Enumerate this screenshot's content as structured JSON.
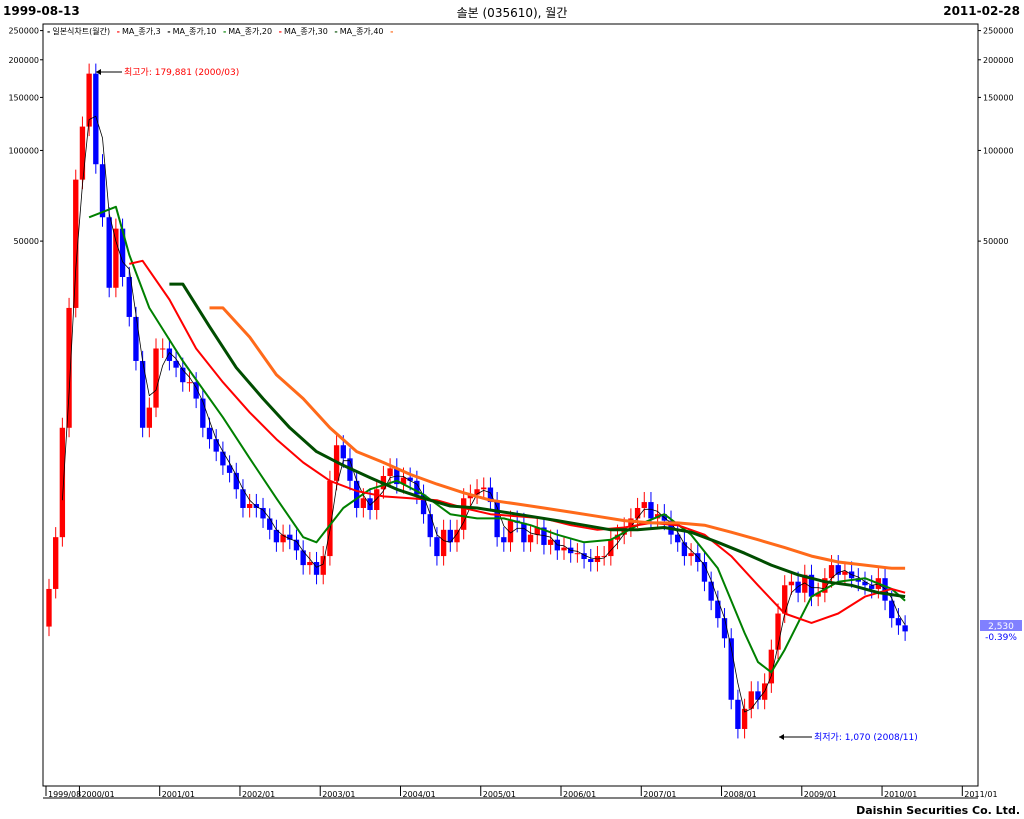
{
  "header": {
    "start_date": "1999-08-13",
    "end_date": "2011-02-28",
    "title": "솔본 (035610), 월간"
  },
  "footer": {
    "company": "Daishin Securities Co. Ltd."
  },
  "legend": [
    {
      "label": "일본식차트(월간)",
      "color": "#000000"
    },
    {
      "label": "MA_종가,3",
      "color": "#ff0000"
    },
    {
      "label": "MA_종가,10",
      "color": "#000000"
    },
    {
      "label": "MA_종가,20",
      "color": "#008000"
    },
    {
      "label": "MA_종가,30",
      "color": "#ff0000"
    },
    {
      "label": "MA_종가,40",
      "color": "#004d00"
    },
    {
      "label": "",
      "color": "#ff6a1a"
    }
  ],
  "annotations": {
    "high": "최고가: 179,881 (2000/03)",
    "low": "최저가: 1,070 (2008/11)"
  },
  "price_tag": {
    "price": "2,530",
    "change": "-0.39%"
  },
  "colors": {
    "up": "#ff0000",
    "down": "#0000ff",
    "ma3": "#000000",
    "ma10": "#008000",
    "ma20": "#ff0000",
    "ma30": "#004d00",
    "ma40": "#ff6a1a",
    "tag_bg": "#8080ff"
  },
  "chart_data": {
    "type": "candlestick",
    "y_scale": "log",
    "y_ticks": [
      250000,
      200000,
      150000,
      100000,
      50000
    ],
    "y_tick_labels": [
      "250000",
      "200000",
      "150000",
      "100000",
      "50000"
    ],
    "x_tick_labels": [
      "1999/08",
      "2000/01",
      "2001/01",
      "2002/01",
      "2003/01",
      "2004/01",
      "2005/01",
      "2006/01",
      "2007/01",
      "2008/01",
      "2009/01",
      "2010/01",
      "2011/01"
    ],
    "x_tick_months": [
      0,
      5,
      17,
      29,
      41,
      53,
      65,
      77,
      89,
      101,
      113,
      125,
      137
    ],
    "ylim": [
      800,
      255000
    ],
    "months": 139,
    "anchors_close": [
      [
        0,
        3500
      ],
      [
        1,
        5200
      ],
      [
        2,
        12000
      ],
      [
        3,
        30000
      ],
      [
        4,
        80000
      ],
      [
        5,
        120000
      ],
      [
        6,
        179881
      ],
      [
        7,
        90000
      ],
      [
        8,
        60000
      ],
      [
        9,
        35000
      ],
      [
        10,
        55000
      ],
      [
        11,
        38000
      ],
      [
        12,
        28000
      ],
      [
        13,
        20000
      ],
      [
        14,
        12000
      ],
      [
        15,
        14000
      ],
      [
        16,
        22000
      ],
      [
        17,
        22000
      ],
      [
        18,
        20000
      ],
      [
        19,
        19000
      ],
      [
        20,
        17000
      ],
      [
        21,
        17000
      ],
      [
        22,
        15000
      ],
      [
        23,
        12000
      ],
      [
        24,
        11000
      ],
      [
        25,
        10000
      ],
      [
        26,
        9000
      ],
      [
        27,
        8500
      ],
      [
        28,
        7500
      ],
      [
        29,
        6500
      ],
      [
        30,
        6700
      ],
      [
        31,
        6500
      ],
      [
        32,
        6000
      ],
      [
        33,
        5500
      ],
      [
        34,
        5000
      ],
      [
        35,
        5300
      ],
      [
        36,
        5100
      ],
      [
        37,
        4700
      ],
      [
        38,
        4200
      ],
      [
        39,
        4300
      ],
      [
        40,
        3900
      ],
      [
        41,
        4500
      ],
      [
        42,
        8000
      ],
      [
        43,
        10500
      ],
      [
        44,
        9500
      ],
      [
        45,
        8000
      ],
      [
        46,
        6500
      ],
      [
        47,
        7000
      ],
      [
        48,
        6400
      ],
      [
        49,
        7500
      ],
      [
        50,
        8300
      ],
      [
        51,
        8800
      ],
      [
        52,
        7800
      ],
      [
        53,
        8200
      ],
      [
        54,
        8000
      ],
      [
        55,
        7200
      ],
      [
        56,
        6200
      ],
      [
        57,
        5200
      ],
      [
        58,
        4500
      ],
      [
        59,
        5500
      ],
      [
        60,
        5000
      ],
      [
        61,
        5500
      ],
      [
        62,
        7000
      ],
      [
        63,
        7200
      ],
      [
        64,
        7500
      ],
      [
        65,
        7600
      ],
      [
        66,
        6800
      ],
      [
        67,
        5200
      ],
      [
        68,
        5000
      ],
      [
        69,
        5900
      ],
      [
        70,
        5800
      ],
      [
        71,
        5000
      ],
      [
        72,
        5300
      ],
      [
        73,
        5600
      ],
      [
        74,
        4900
      ],
      [
        75,
        5100
      ],
      [
        76,
        4700
      ],
      [
        77,
        4800
      ],
      [
        78,
        4600
      ],
      [
        79,
        4600
      ],
      [
        80,
        4400
      ],
      [
        81,
        4300
      ],
      [
        82,
        4500
      ],
      [
        83,
        4500
      ],
      [
        84,
        5100
      ],
      [
        85,
        5300
      ],
      [
        86,
        5600
      ],
      [
        87,
        6000
      ],
      [
        88,
        6500
      ],
      [
        89,
        6800
      ],
      [
        90,
        6000
      ],
      [
        91,
        6200
      ],
      [
        92,
        5900
      ],
      [
        93,
        5300
      ],
      [
        94,
        5000
      ],
      [
        95,
        4500
      ],
      [
        96,
        4600
      ],
      [
        97,
        4300
      ],
      [
        98,
        3700
      ],
      [
        99,
        3200
      ],
      [
        100,
        2800
      ],
      [
        101,
        2400
      ],
      [
        102,
        1500
      ],
      [
        103,
        1200
      ],
      [
        104,
        1400
      ],
      [
        105,
        1600
      ],
      [
        106,
        1500
      ],
      [
        107,
        1700
      ],
      [
        108,
        2200
      ],
      [
        109,
        2900
      ],
      [
        110,
        3600
      ],
      [
        111,
        3700
      ],
      [
        112,
        3400
      ],
      [
        113,
        3900
      ],
      [
        114,
        3300
      ],
      [
        115,
        3400
      ],
      [
        116,
        3800
      ],
      [
        117,
        4200
      ],
      [
        118,
        3900
      ],
      [
        119,
        4000
      ],
      [
        120,
        3800
      ],
      [
        121,
        3700
      ],
      [
        122,
        3600
      ],
      [
        123,
        3500
      ],
      [
        124,
        3800
      ],
      [
        125,
        3200
      ],
      [
        126,
        2800
      ],
      [
        127,
        2650
      ],
      [
        128,
        2530
      ]
    ],
    "ma_anchors": {
      "ma10": [
        [
          6,
          60000
        ],
        [
          10,
          65000
        ],
        [
          12,
          45000
        ],
        [
          15,
          30000
        ],
        [
          20,
          20000
        ],
        [
          26,
          13000
        ],
        [
          30,
          9500
        ],
        [
          34,
          7000
        ],
        [
          38,
          5200
        ],
        [
          40,
          5000
        ],
        [
          44,
          6500
        ],
        [
          48,
          7500
        ],
        [
          52,
          8000
        ],
        [
          56,
          7200
        ],
        [
          60,
          6200
        ],
        [
          64,
          6000
        ],
        [
          68,
          6000
        ],
        [
          72,
          5700
        ],
        [
          76,
          5300
        ],
        [
          80,
          5000
        ],
        [
          84,
          5100
        ],
        [
          88,
          5700
        ],
        [
          92,
          6200
        ],
        [
          96,
          5300
        ],
        [
          100,
          4100
        ],
        [
          104,
          2500
        ],
        [
          106,
          2000
        ],
        [
          108,
          1850
        ],
        [
          110,
          2200
        ],
        [
          112,
          2700
        ],
        [
          114,
          3300
        ],
        [
          118,
          3700
        ],
        [
          122,
          3800
        ],
        [
          126,
          3500
        ],
        [
          128,
          3200
        ]
      ],
      "ma20": [
        [
          12,
          42000
        ],
        [
          14,
          43000
        ],
        [
          18,
          32000
        ],
        [
          22,
          22000
        ],
        [
          26,
          17000
        ],
        [
          30,
          13500
        ],
        [
          34,
          11000
        ],
        [
          38,
          9200
        ],
        [
          42,
          8000
        ],
        [
          46,
          7400
        ],
        [
          50,
          7100
        ],
        [
          54,
          7000
        ],
        [
          58,
          6900
        ],
        [
          62,
          6500
        ],
        [
          66,
          6200
        ],
        [
          70,
          6100
        ],
        [
          74,
          6000
        ],
        [
          78,
          5700
        ],
        [
          82,
          5500
        ],
        [
          86,
          5600
        ],
        [
          90,
          5800
        ],
        [
          94,
          5700
        ],
        [
          98,
          5300
        ],
        [
          102,
          4500
        ],
        [
          106,
          3600
        ],
        [
          110,
          2900
        ],
        [
          114,
          2700
        ],
        [
          118,
          2900
        ],
        [
          122,
          3300
        ],
        [
          126,
          3500
        ],
        [
          128,
          3400
        ]
      ],
      "ma30": [
        [
          18,
          36000
        ],
        [
          20,
          36000
        ],
        [
          24,
          26000
        ],
        [
          28,
          19000
        ],
        [
          32,
          15000
        ],
        [
          36,
          12000
        ],
        [
          40,
          10000
        ],
        [
          44,
          9000
        ],
        [
          48,
          8200
        ],
        [
          52,
          7500
        ],
        [
          56,
          7000
        ],
        [
          60,
          6600
        ],
        [
          64,
          6500
        ],
        [
          68,
          6300
        ],
        [
          72,
          6100
        ],
        [
          76,
          5900
        ],
        [
          80,
          5700
        ],
        [
          84,
          5500
        ],
        [
          88,
          5500
        ],
        [
          92,
          5600
        ],
        [
          96,
          5400
        ],
        [
          100,
          5000
        ],
        [
          104,
          4600
        ],
        [
          108,
          4200
        ],
        [
          112,
          3900
        ],
        [
          116,
          3700
        ],
        [
          120,
          3600
        ],
        [
          124,
          3400
        ],
        [
          128,
          3300
        ]
      ],
      "ma40": [
        [
          24,
          30000
        ],
        [
          26,
          30000
        ],
        [
          30,
          24000
        ],
        [
          34,
          18000
        ],
        [
          38,
          15000
        ],
        [
          42,
          12000
        ],
        [
          46,
          10000
        ],
        [
          50,
          9200
        ],
        [
          54,
          8400
        ],
        [
          58,
          7800
        ],
        [
          62,
          7300
        ],
        [
          66,
          6900
        ],
        [
          70,
          6700
        ],
        [
          74,
          6500
        ],
        [
          78,
          6300
        ],
        [
          82,
          6100
        ],
        [
          86,
          5900
        ],
        [
          90,
          5800
        ],
        [
          94,
          5800
        ],
        [
          98,
          5700
        ],
        [
          102,
          5400
        ],
        [
          106,
          5100
        ],
        [
          110,
          4800
        ],
        [
          114,
          4500
        ],
        [
          118,
          4300
        ],
        [
          122,
          4200
        ],
        [
          126,
          4100
        ],
        [
          128,
          4100
        ]
      ]
    }
  }
}
